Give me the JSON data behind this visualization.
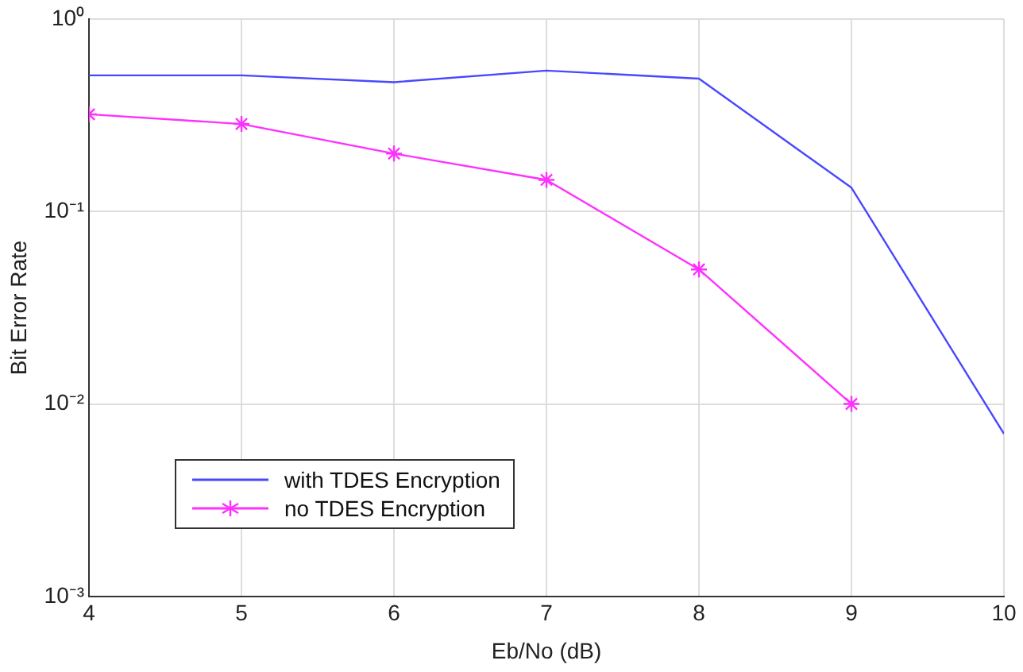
{
  "chart_data": {
    "type": "line",
    "xlabel": "Eb/No (dB)",
    "ylabel": "Bit Error Rate",
    "x": [
      4,
      5,
      6,
      7,
      8,
      9,
      10
    ],
    "log": "y",
    "grid": true,
    "legend": "bottom left",
    "xlim": [
      4,
      10
    ],
    "xticks": [
      4,
      5,
      6,
      7,
      8,
      9,
      10
    ],
    "ylim": [
      0.001,
      1
    ],
    "yticks": [
      {
        "value": 0.001,
        "label": "10⁻³"
      },
      {
        "value": 0.01,
        "label": "10⁻²"
      },
      {
        "value": 0.1,
        "label": "10⁻¹"
      },
      {
        "value": 1,
        "label": "10⁰"
      }
    ],
    "series": [
      {
        "name": "with TDES Encryption",
        "color": "#4848ff",
        "marker": "none",
        "values": [
          0.51,
          0.51,
          0.47,
          0.54,
          0.49,
          0.133,
          0.007
        ]
      },
      {
        "name": "no TDES Encryption",
        "color": "#ff30ff",
        "marker": "cross",
        "values": [
          0.32,
          0.285,
          0.2,
          0.146,
          0.05,
          0.01,
          null
        ]
      }
    ]
  }
}
